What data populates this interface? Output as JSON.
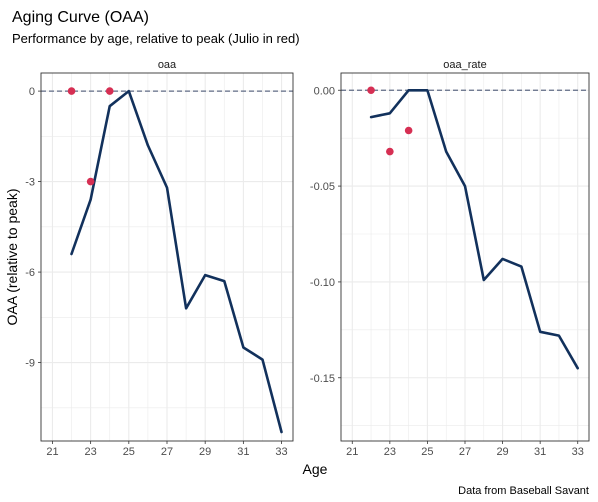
{
  "title": "Aging Curve (OAA)",
  "subtitle": "Performance by age, relative to peak (Julio in red)",
  "caption": "Data from Baseball Savant",
  "xlabel": "Age",
  "ylabel": "OAA (relative to peak)",
  "colors": {
    "line": "#12315c",
    "point": "#d62f53",
    "reference": "#5f6b85",
    "grid": "#ebebeb",
    "border": "#333333"
  },
  "chart_data": [
    {
      "type": "line",
      "panel": "oaa",
      "x_ticks": [
        21,
        23,
        25,
        27,
        29,
        31,
        33
      ],
      "x_tick_labels": [
        "21",
        "23",
        "25",
        "27",
        "29",
        "31",
        "33"
      ],
      "y_ticks": [
        0,
        -3,
        -6,
        -9
      ],
      "y_tick_labels": [
        "0",
        "-3",
        "-6",
        "-9"
      ],
      "xlim": [
        20.4,
        33.6
      ],
      "ylim": [
        -11.6,
        0.6
      ],
      "reference_line": 0,
      "series": [
        {
          "x": [
            22,
            23,
            24,
            25,
            26,
            27,
            28,
            29,
            30,
            31,
            32,
            33
          ],
          "y": [
            -5.4,
            -3.6,
            -0.5,
            0,
            -1.8,
            -3.2,
            -7.2,
            -6.1,
            -6.3,
            -8.5,
            -8.9,
            -11.3
          ]
        },
        {
          "type": "scatter",
          "x": [
            22,
            23,
            24
          ],
          "y": [
            0,
            -3,
            0
          ]
        }
      ]
    },
    {
      "type": "line",
      "panel": "oaa_rate",
      "x_ticks": [
        21,
        23,
        25,
        27,
        29,
        31,
        33
      ],
      "x_tick_labels": [
        "21",
        "23",
        "25",
        "27",
        "29",
        "31",
        "33"
      ],
      "y_ticks": [
        0,
        -0.05,
        -0.1,
        -0.15
      ],
      "y_tick_labels": [
        "0.00",
        "-0.05",
        "-0.10",
        "-0.15"
      ],
      "xlim": [
        20.4,
        33.6
      ],
      "ylim": [
        -0.183,
        0.009
      ],
      "reference_line": 0,
      "series": [
        {
          "x": [
            22,
            23,
            24,
            25,
            26,
            27,
            28,
            29,
            30,
            31,
            32,
            33
          ],
          "y": [
            -0.014,
            -0.012,
            0,
            0,
            -0.032,
            -0.05,
            -0.099,
            -0.088,
            -0.092,
            -0.126,
            -0.128,
            -0.145
          ]
        },
        {
          "type": "scatter",
          "x": [
            22,
            23,
            24
          ],
          "y": [
            0,
            -0.032,
            -0.021
          ]
        }
      ]
    }
  ]
}
